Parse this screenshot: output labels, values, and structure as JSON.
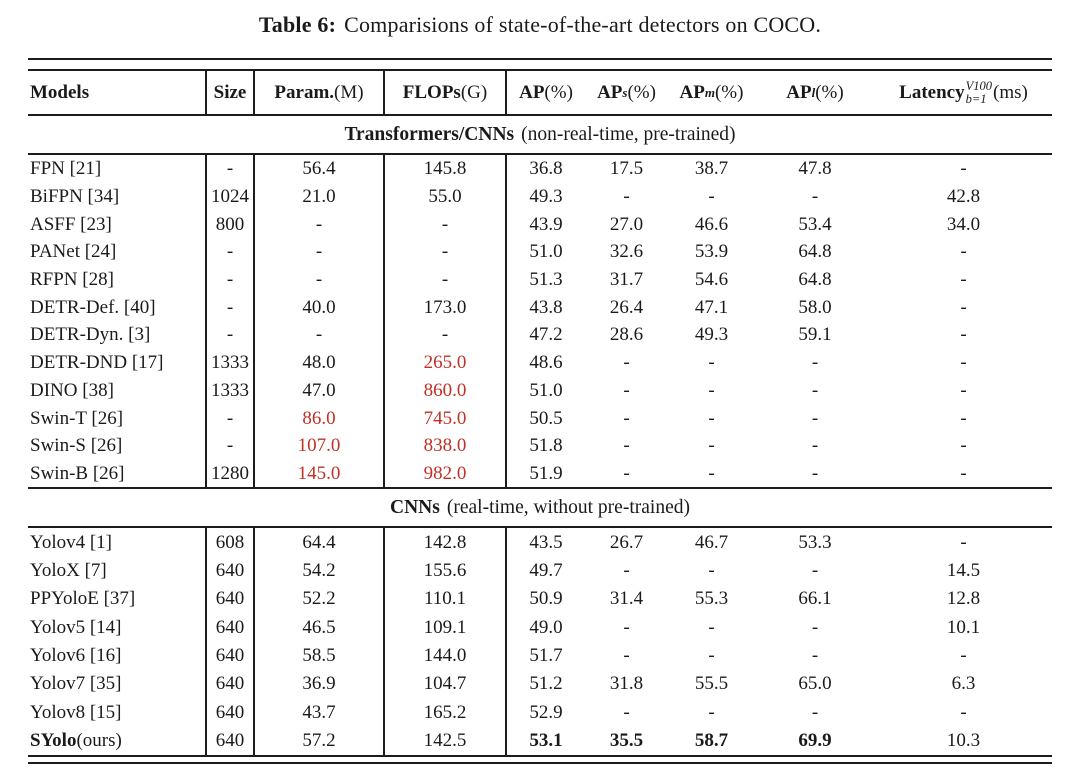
{
  "title": {
    "label": "Table 6:",
    "text": "Comparisions of state-of-the-art detectors on COCO."
  },
  "colors": {
    "accent_red": "#bf3127",
    "text": "#1a1a1a"
  },
  "table": {
    "columns": [
      {
        "main": "Models"
      },
      {
        "main": "Size"
      },
      {
        "main": "Param.",
        "unit": "(M)"
      },
      {
        "main": "FLOPs",
        "unit": "(G)"
      },
      {
        "main": "AP",
        "unit": "(%)"
      },
      {
        "main": "AP",
        "sub": "s",
        "unit": "(%)"
      },
      {
        "main": "AP",
        "sub": "m",
        "unit": "(%)"
      },
      {
        "main": "AP",
        "sub": "l",
        "unit": "(%)"
      },
      {
        "main": "Latency",
        "sup": "V100",
        "sub": "b=1",
        "unit": "(ms)"
      }
    ],
    "sections": [
      {
        "header": {
          "bold": "Transformers/CNNs",
          "rest": "(non-real-time, pre-trained)"
        },
        "rows": [
          {
            "model": [
              {
                "text": "FPN [21]"
              }
            ],
            "cells": [
              "-",
              "56.4",
              "145.8",
              "36.8",
              "17.5",
              "38.7",
              "47.8",
              "-"
            ]
          },
          {
            "model": [
              {
                "text": "BiFPN [34]"
              }
            ],
            "cells": [
              "1024",
              "21.0",
              "55.0",
              "49.3",
              "-",
              "-",
              "-",
              "42.8"
            ]
          },
          {
            "model": [
              {
                "text": "ASFF [23]"
              }
            ],
            "cells": [
              "800",
              "-",
              "-",
              "43.9",
              "27.0",
              "46.6",
              "53.4",
              "34.0"
            ]
          },
          {
            "model": [
              {
                "text": "PANet [24]"
              }
            ],
            "cells": [
              "-",
              "-",
              "-",
              "51.0",
              "32.6",
              "53.9",
              "64.8",
              "-"
            ]
          },
          {
            "model": [
              {
                "text": "RFPN [28]"
              }
            ],
            "cells": [
              "-",
              "-",
              "-",
              "51.3",
              "31.7",
              "54.6",
              "64.8",
              "-"
            ]
          },
          {
            "model": [
              {
                "text": "DETR-Def. [40]"
              }
            ],
            "cells": [
              "-",
              "40.0",
              "173.0",
              "43.8",
              "26.4",
              "47.1",
              "58.0",
              "-"
            ]
          },
          {
            "model": [
              {
                "text": "DETR-Dyn. [3]"
              }
            ],
            "cells": [
              "-",
              "-",
              "-",
              "47.2",
              "28.6",
              "49.3",
              "59.1",
              "-"
            ]
          },
          {
            "model": [
              {
                "text": "DETR-DND [17]"
              }
            ],
            "cells": [
              "1333",
              "48.0",
              "265.0",
              "48.6",
              "-",
              "-",
              "-",
              "-"
            ],
            "red": [
              2
            ]
          },
          {
            "model": [
              {
                "text": "DINO [38]"
              }
            ],
            "cells": [
              "1333",
              "47.0",
              "860.0",
              "51.0",
              "-",
              "-",
              "-",
              "-"
            ],
            "red": [
              2
            ]
          },
          {
            "model": [
              {
                "text": "Swin-T [26]"
              }
            ],
            "cells": [
              "-",
              "86.0",
              "745.0",
              "50.5",
              "-",
              "-",
              "-",
              "-"
            ],
            "red": [
              1,
              2
            ]
          },
          {
            "model": [
              {
                "text": "Swin-S [26]"
              }
            ],
            "cells": [
              "-",
              "107.0",
              "838.0",
              "51.8",
              "-",
              "-",
              "-",
              "-"
            ],
            "red": [
              1,
              2
            ]
          },
          {
            "model": [
              {
                "text": "Swin-B [26]"
              }
            ],
            "cells": [
              "1280",
              "145.0",
              "982.0",
              "51.9",
              "-",
              "-",
              "-",
              "-"
            ],
            "red": [
              1,
              2
            ]
          }
        ]
      },
      {
        "header": {
          "bold": "CNNs",
          "rest": "(real-time, without pre-trained)"
        },
        "rows": [
          {
            "model": [
              {
                "text": "Yolov4 [1]"
              }
            ],
            "cells": [
              "608",
              "64.4",
              "142.8",
              "43.5",
              "26.7",
              "46.7",
              "53.3",
              "-"
            ]
          },
          {
            "model": [
              {
                "text": "YoloX [7]"
              }
            ],
            "cells": [
              "640",
              "54.2",
              "155.6",
              "49.7",
              "-",
              "-",
              "-",
              "14.5"
            ]
          },
          {
            "model": [
              {
                "text": "PPYoloE [37]"
              }
            ],
            "cells": [
              "640",
              "52.2",
              "110.1",
              "50.9",
              "31.4",
              "55.3",
              "66.1",
              "12.8"
            ]
          },
          {
            "model": [
              {
                "text": "Yolov5 [14]"
              }
            ],
            "cells": [
              "640",
              "46.5",
              "109.1",
              "49.0",
              "-",
              "-",
              "-",
              "10.1"
            ]
          },
          {
            "model": [
              {
                "text": "Yolov6 [16]"
              }
            ],
            "cells": [
              "640",
              "58.5",
              "144.0",
              "51.7",
              "-",
              "-",
              "-",
              "-"
            ]
          },
          {
            "model": [
              {
                "text": "Yolov7 [35]"
              }
            ],
            "cells": [
              "640",
              "36.9",
              "104.7",
              "51.2",
              "31.8",
              "55.5",
              "65.0",
              "6.3"
            ]
          },
          {
            "model": [
              {
                "text": "Yolov8 [15]"
              }
            ],
            "cells": [
              "640",
              "43.7",
              "165.2",
              "52.9",
              "-",
              "-",
              "-",
              "-"
            ]
          },
          {
            "model": [
              {
                "text": "SYolo",
                "bold": true
              },
              {
                "text": "(ours)"
              }
            ],
            "cells": [
              "640",
              "57.2",
              "142.5",
              "53.1",
              "35.5",
              "58.7",
              "69.9",
              "10.3"
            ],
            "bold_cells": [
              3,
              4,
              5,
              6
            ]
          }
        ]
      }
    ]
  }
}
